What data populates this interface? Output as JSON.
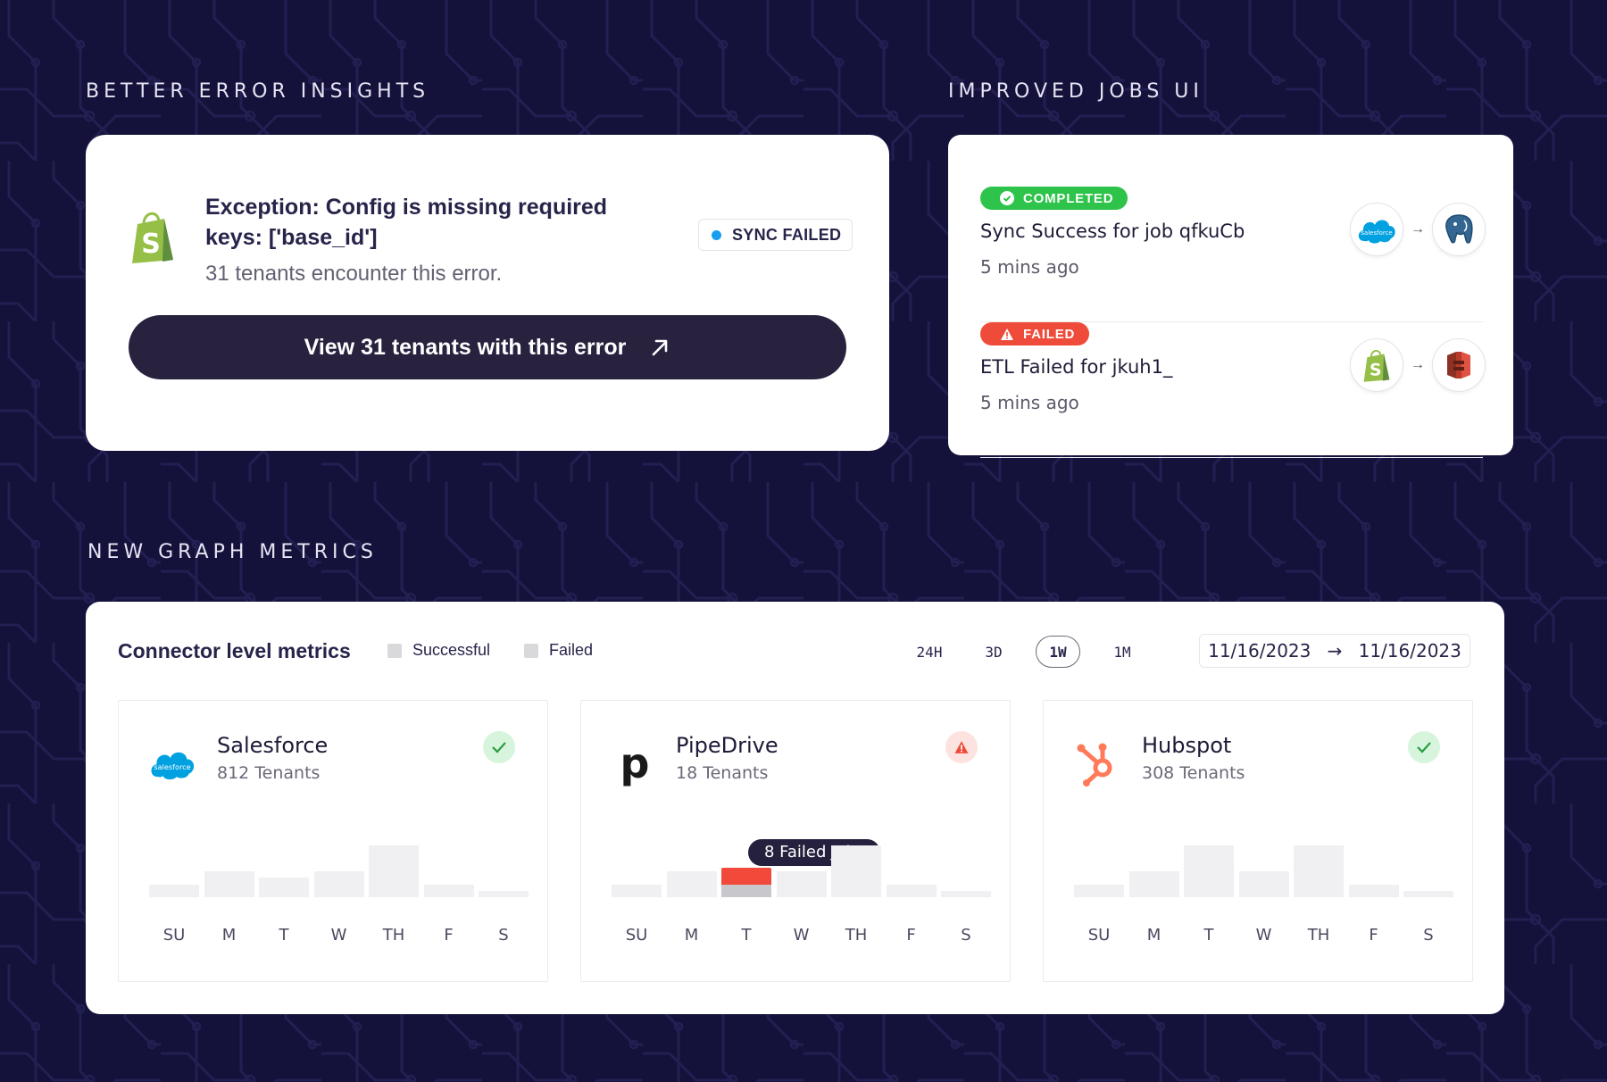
{
  "colors": {
    "background": "#14123a",
    "circuit": "#201d4f",
    "success": "#2ec34a",
    "failure": "#ef4b3a",
    "button": "#28223f",
    "bar_default": "#f0f0f2"
  },
  "sections": {
    "errors_heading": "BETTER ERROR INSIGHTS",
    "jobs_heading": "IMPROVED JOBS UI",
    "metrics_heading": "NEW GRAPH METRICS"
  },
  "error_card": {
    "logo_icon": "shopify-icon",
    "title": "Exception: Config is missing required keys: ['base_id']",
    "subtitle": "31 tenants encounter this error.",
    "badge_label": "SYNC FAILED",
    "button_label": "View 31 tenants with this error",
    "button_icon": "arrow-up-right-icon"
  },
  "jobs": [
    {
      "status": "COMPLETED",
      "status_type": "success",
      "title": "Sync Success for job qfkuCb",
      "time": "5 mins ago",
      "source_icon": "salesforce-icon",
      "source_text": "salesforce",
      "destination_icon": "postgresql-icon"
    },
    {
      "status": "FAILED",
      "status_type": "failure",
      "title": "ETL Failed for jkuh1_",
      "time": "5 mins ago",
      "source_icon": "shopify-icon",
      "destination_icon": "aws-s3-icon"
    }
  ],
  "metrics": {
    "title": "Connector level metrics",
    "legend": [
      {
        "label": "Successful"
      },
      {
        "label": "Failed"
      }
    ],
    "ranges": [
      "24H",
      "3D",
      "1W",
      "1M"
    ],
    "active_range": "1W",
    "date_start": "11/16/2023",
    "date_end": "11/16/2023",
    "days": [
      "SU",
      "M",
      "T",
      "W",
      "TH",
      "F",
      "S"
    ],
    "connectors": [
      {
        "name": "Salesforce",
        "tenants": "812 Tenants",
        "icon": "salesforce-icon",
        "icon_text": "salesforce",
        "status": "ok",
        "status_icon": "check-icon",
        "bars": [
          1,
          2,
          1.5,
          2,
          4,
          1,
          0.5
        ]
      },
      {
        "name": "PipeDrive",
        "tenants": "18 Tenants",
        "icon": "pipedrive-icon",
        "icon_text": "p",
        "status": "bad",
        "status_icon": "warning-icon",
        "bars": [
          1,
          2,
          2,
          2,
          4,
          1,
          0.5
        ],
        "failed_bar_index": 2,
        "failed_value": 2.3,
        "tooltip": "8 Failed Jobs"
      },
      {
        "name": "Hubspot",
        "tenants": "308 Tenants",
        "icon": "hubspot-icon",
        "status": "ok",
        "status_icon": "check-icon",
        "bars": [
          1,
          2,
          4,
          2,
          4,
          1,
          0.5
        ]
      }
    ]
  }
}
